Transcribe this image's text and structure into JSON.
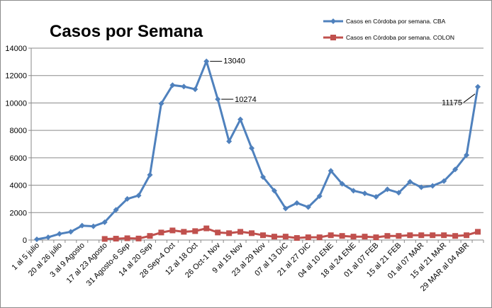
{
  "chart_data": {
    "type": "line",
    "title": "Casos por Semana",
    "xlabel": "",
    "ylabel": "",
    "ylim": [
      0,
      14000
    ],
    "yticks": [
      0,
      2000,
      4000,
      6000,
      8000,
      10000,
      12000,
      14000
    ],
    "grid": true,
    "legend_position": "top-right",
    "categories": [
      "1 al 5 julio",
      "",
      "20 al 26 julio",
      "",
      "3 al 9 Agosto",
      "",
      "17 al 23 Agosto",
      "",
      "31 Agosto-6 Sep",
      "",
      "14 al 20 Sep",
      "",
      "28 Sep-4 Oct",
      "",
      "12 al 18 Oct",
      "",
      "26 Oct-1 Nov",
      "",
      "9 al 15 Nov",
      "",
      "23 al 29 Nov",
      "",
      "07 al 13 DIC",
      "",
      "21 al 27 DIC",
      "",
      "04 al 10 ENE",
      "",
      "18 al 24 ENE",
      "",
      "01 al 07 FEB",
      "",
      "15 al 21 FEB",
      "",
      "01 al 07 MAR",
      "",
      "15 al 21 MAR",
      "",
      "29 MAR al 04 ABR",
      ""
    ],
    "series": [
      {
        "name": "Casos en Córdoba por semana. CBA",
        "color": "#4F81BD",
        "marker": "diamond",
        "values": [
          50,
          200,
          450,
          600,
          1050,
          1000,
          1300,
          2200,
          3000,
          3250,
          4750,
          9950,
          11300,
          11200,
          11000,
          13040,
          10274,
          7200,
          8800,
          6700,
          4600,
          3600,
          2300,
          2700,
          2400,
          3200,
          5050,
          4100,
          3600,
          3400,
          3150,
          3700,
          3450,
          4250,
          3850,
          3950,
          4300,
          5150,
          6200,
          11175
        ]
      },
      {
        "name": "Casos en Córdoba por semana. COLON",
        "color": "#C0504D",
        "marker": "square",
        "values": [
          null,
          null,
          null,
          null,
          null,
          null,
          80,
          100,
          130,
          110,
          300,
          550,
          700,
          600,
          650,
          850,
          550,
          500,
          600,
          500,
          350,
          250,
          250,
          150,
          200,
          200,
          350,
          300,
          250,
          250,
          200,
          300,
          300,
          350,
          350,
          350,
          350,
          300,
          350,
          600
        ]
      }
    ],
    "annotations": [
      {
        "label": "13040",
        "series": 0,
        "index": 15
      },
      {
        "label": "10274",
        "series": 0,
        "index": 16
      },
      {
        "label": "11175",
        "series": 0,
        "index": 39
      }
    ]
  }
}
